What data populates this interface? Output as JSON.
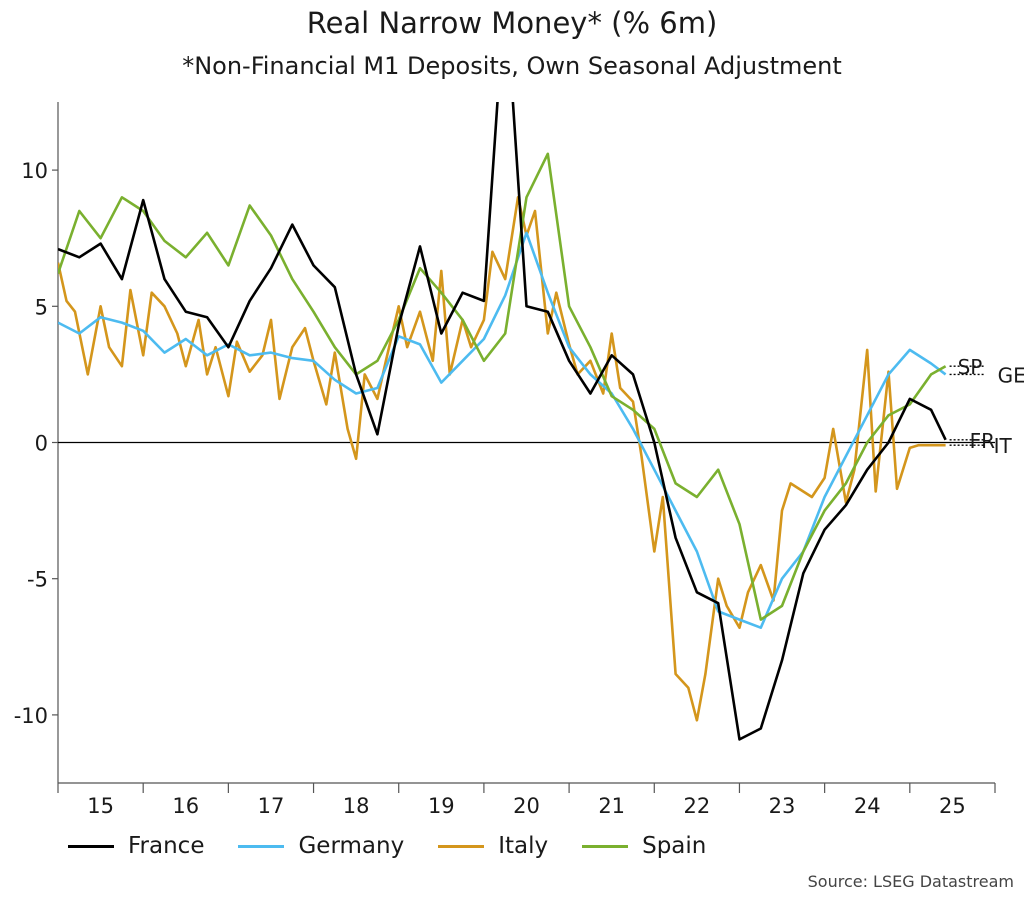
{
  "chart_data": {
    "type": "line",
    "title": "Real Narrow Money* (% 6m)",
    "subtitle": "*Non-Financial M1 Deposits, Own Seasonal Adjustment",
    "source": "Source: LSEG Datastream",
    "xlabel": "",
    "ylabel": "",
    "x_tick_labels": [
      "15",
      "16",
      "17",
      "18",
      "19",
      "20",
      "21",
      "22",
      "23",
      "24",
      "25"
    ],
    "y_ticks": [
      10,
      5,
      0,
      -5,
      -10
    ],
    "y_tick_labels": [
      "10",
      "5",
      "0",
      "-5",
      "-10"
    ],
    "xlim": [
      2015.0,
      2026.0
    ],
    "ylim": [
      -12.5,
      12.5
    ],
    "grid": false,
    "legend_position": "bottom",
    "series": [
      {
        "name": "France",
        "end_label": "FR",
        "color": "#000000",
        "x": [
          2015.0,
          2015.25,
          2015.5,
          2015.75,
          2016.0,
          2016.25,
          2016.5,
          2016.75,
          2017.0,
          2017.25,
          2017.5,
          2017.75,
          2018.0,
          2018.25,
          2018.5,
          2018.75,
          2019.0,
          2019.25,
          2019.5,
          2019.75,
          2020.0,
          2020.17,
          2020.33,
          2020.5,
          2020.75,
          2021.0,
          2021.25,
          2021.5,
          2021.75,
          2022.0,
          2022.25,
          2022.5,
          2022.75,
          2023.0,
          2023.25,
          2023.5,
          2023.75,
          2024.0,
          2024.25,
          2024.5,
          2024.75,
          2025.0,
          2025.25,
          2025.42
        ],
        "values": [
          7.1,
          6.8,
          7.3,
          6.0,
          8.9,
          6.0,
          4.8,
          4.6,
          3.5,
          5.2,
          6.4,
          8.0,
          6.5,
          5.7,
          2.5,
          0.3,
          4.3,
          7.2,
          4.0,
          5.5,
          5.2,
          13.0,
          13.0,
          5.0,
          4.8,
          3.0,
          1.8,
          3.2,
          2.5,
          0.0,
          -3.5,
          -5.5,
          -5.9,
          -10.9,
          -10.5,
          -8.0,
          -4.8,
          -3.2,
          -2.3,
          -1.0,
          0.0,
          1.6,
          1.2,
          0.1
        ]
      },
      {
        "name": "Germany",
        "end_label": "GE",
        "color": "#4dbbf0",
        "x": [
          2015.0,
          2015.25,
          2015.5,
          2015.75,
          2016.0,
          2016.25,
          2016.5,
          2016.75,
          2017.0,
          2017.25,
          2017.5,
          2017.75,
          2018.0,
          2018.25,
          2018.5,
          2018.75,
          2019.0,
          2019.25,
          2019.5,
          2019.75,
          2020.0,
          2020.25,
          2020.5,
          2020.75,
          2021.0,
          2021.25,
          2021.5,
          2021.75,
          2022.0,
          2022.25,
          2022.5,
          2022.75,
          2023.0,
          2023.25,
          2023.5,
          2023.75,
          2024.0,
          2024.25,
          2024.5,
          2024.75,
          2025.0,
          2025.25,
          2025.42
        ],
        "values": [
          4.4,
          4.0,
          4.6,
          4.4,
          4.1,
          3.3,
          3.8,
          3.2,
          3.6,
          3.2,
          3.3,
          3.1,
          3.0,
          2.3,
          1.8,
          2.0,
          3.9,
          3.6,
          2.2,
          3.0,
          3.8,
          5.4,
          7.7,
          5.5,
          3.5,
          2.5,
          1.8,
          0.5,
          -1.0,
          -2.5,
          -4.0,
          -6.2,
          -6.5,
          -6.8,
          -5.0,
          -4.0,
          -2.0,
          -0.5,
          1.0,
          2.5,
          3.4,
          2.9,
          2.5
        ]
      },
      {
        "name": "Italy",
        "end_label": "IT",
        "color": "#d4961c",
        "x": [
          2015.0,
          2015.1,
          2015.2,
          2015.35,
          2015.5,
          2015.6,
          2015.75,
          2015.85,
          2016.0,
          2016.1,
          2016.25,
          2016.4,
          2016.5,
          2016.65,
          2016.75,
          2016.85,
          2017.0,
          2017.1,
          2017.25,
          2017.4,
          2017.5,
          2017.6,
          2017.75,
          2017.9,
          2018.0,
          2018.15,
          2018.25,
          2018.4,
          2018.5,
          2018.6,
          2018.75,
          2018.85,
          2019.0,
          2019.1,
          2019.25,
          2019.4,
          2019.5,
          2019.6,
          2019.75,
          2019.85,
          2020.0,
          2020.1,
          2020.25,
          2020.4,
          2020.5,
          2020.6,
          2020.75,
          2020.85,
          2021.0,
          2021.1,
          2021.25,
          2021.4,
          2021.5,
          2021.6,
          2021.75,
          2021.85,
          2022.0,
          2022.1,
          2022.25,
          2022.4,
          2022.5,
          2022.6,
          2022.75,
          2022.85,
          2023.0,
          2023.1,
          2023.25,
          2023.4,
          2023.5,
          2023.6,
          2023.75,
          2023.85,
          2024.0,
          2024.1,
          2024.25,
          2024.35,
          2024.5,
          2024.6,
          2024.75,
          2024.85,
          2025.0,
          2025.1,
          2025.25,
          2025.42
        ],
        "values": [
          6.6,
          5.2,
          4.8,
          2.5,
          5.0,
          3.5,
          2.8,
          5.6,
          3.2,
          5.5,
          5.0,
          4.0,
          2.8,
          4.5,
          2.5,
          3.5,
          1.7,
          3.7,
          2.6,
          3.2,
          4.5,
          1.6,
          3.5,
          4.2,
          3.0,
          1.4,
          3.3,
          0.5,
          -0.6,
          2.5,
          1.6,
          3.0,
          5.0,
          3.5,
          4.8,
          3.0,
          6.3,
          2.5,
          4.5,
          3.5,
          4.5,
          7.0,
          6.0,
          9.0,
          7.6,
          8.5,
          4.0,
          5.5,
          3.6,
          2.5,
          3.0,
          1.8,
          4.0,
          2.0,
          1.5,
          -0.5,
          -4.0,
          -2.0,
          -8.5,
          -9.0,
          -10.2,
          -8.5,
          -5.0,
          -6.0,
          -6.8,
          -5.5,
          -4.5,
          -5.8,
          -2.5,
          -1.5,
          -1.8,
          -2.0,
          -1.3,
          0.5,
          -2.2,
          -1.0,
          3.4,
          -1.8,
          2.6,
          -1.7,
          -0.2,
          -0.1,
          -0.1,
          -0.1
        ]
      },
      {
        "name": "Spain",
        "end_label": "SP",
        "color": "#7ab02f",
        "x": [
          2015.0,
          2015.25,
          2015.5,
          2015.75,
          2016.0,
          2016.25,
          2016.5,
          2016.75,
          2017.0,
          2017.25,
          2017.5,
          2017.75,
          2018.0,
          2018.25,
          2018.5,
          2018.75,
          2019.0,
          2019.25,
          2019.5,
          2019.75,
          2020.0,
          2020.25,
          2020.5,
          2020.75,
          2021.0,
          2021.25,
          2021.5,
          2021.75,
          2022.0,
          2022.25,
          2022.5,
          2022.75,
          2023.0,
          2023.25,
          2023.5,
          2023.75,
          2024.0,
          2024.25,
          2024.5,
          2024.75,
          2025.0,
          2025.25,
          2025.42
        ],
        "values": [
          6.2,
          8.5,
          7.5,
          9.0,
          8.5,
          7.4,
          6.8,
          7.7,
          6.5,
          8.7,
          7.6,
          6.0,
          4.8,
          3.5,
          2.5,
          3.0,
          4.5,
          6.4,
          5.5,
          4.5,
          3.0,
          4.0,
          9.0,
          10.6,
          5.0,
          3.5,
          1.7,
          1.2,
          0.5,
          -1.5,
          -2.0,
          -1.0,
          -3.0,
          -6.5,
          -6.0,
          -4.0,
          -2.5,
          -1.5,
          0.0,
          1.0,
          1.4,
          2.5,
          2.8
        ]
      }
    ]
  }
}
